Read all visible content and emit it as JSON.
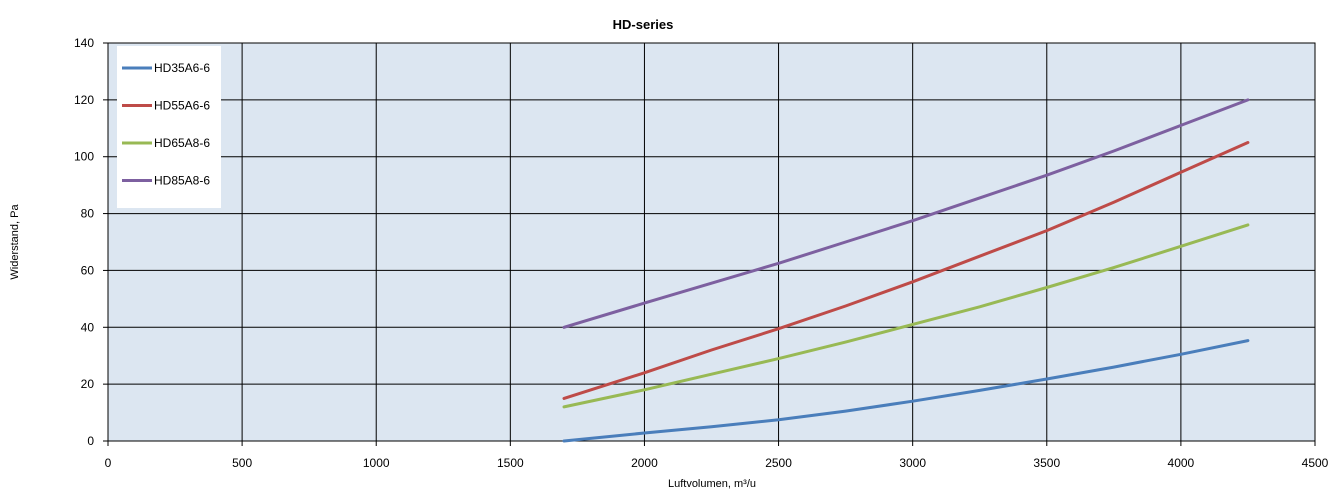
{
  "chart_data": {
    "type": "line",
    "title": "HD-series",
    "xlabel": "Luftvolumen, m³/u",
    "ylabel": "Widerstand, Pa",
    "xlim": [
      0,
      4500
    ],
    "ylim": [
      0,
      140
    ],
    "xticks": [
      0,
      500,
      1000,
      1500,
      2000,
      2500,
      3000,
      3500,
      4000,
      4500
    ],
    "yticks": [
      0,
      20,
      40,
      60,
      80,
      100,
      120,
      140
    ],
    "grid": true,
    "legend_position": "top-left",
    "plot_background": "#dce6f1",
    "x": [
      1700,
      2000,
      2250,
      2500,
      2750,
      3000,
      3250,
      3500,
      3750,
      4000,
      4250
    ],
    "series": [
      {
        "name": "HD35A6-6",
        "color": "#4a7ebb",
        "values": [
          0,
          2.8,
          5,
          7.5,
          10.5,
          14,
          17.8,
          21.8,
          26,
          30.5,
          35.3
        ]
      },
      {
        "name": "HD55A6-6",
        "color": "#be4b48",
        "values": [
          15,
          24,
          32,
          39.5,
          47.5,
          56,
          65,
          74,
          84,
          94.5,
          105
        ]
      },
      {
        "name": "HD65A8-6",
        "color": "#98b954",
        "values": [
          12,
          18,
          23.5,
          29,
          34.8,
          41,
          47.2,
          54,
          61,
          68.5,
          76
        ]
      },
      {
        "name": "HD85A8-6",
        "color": "#7d60a0",
        "values": [
          40,
          48.5,
          55.5,
          62.5,
          70,
          77.5,
          85.5,
          93.5,
          102,
          111,
          120
        ]
      }
    ]
  }
}
